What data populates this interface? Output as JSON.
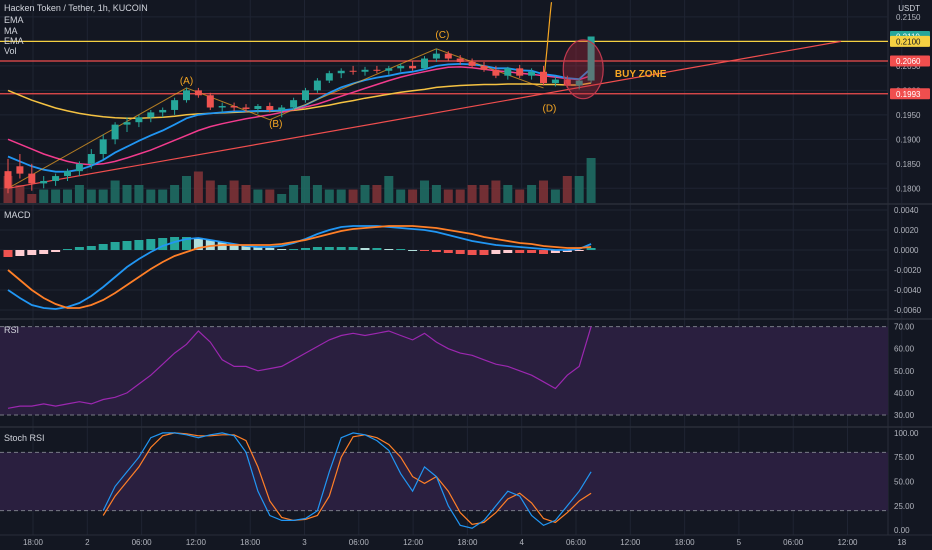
{
  "header": {
    "symbol_title": "Hacken Token / Tether, 1h, KUCOIN",
    "indicators": [
      "EMA",
      "MA",
      "EMA",
      "Vol"
    ],
    "currency": "USDT"
  },
  "panes": {
    "macd_label": "MACD",
    "rsi_label": "RSI",
    "stoch_label": "Stoch RSI"
  },
  "colors": {
    "background": "#131722",
    "grid": "#1f2433",
    "up": "#26a69a",
    "down": "#ef5350",
    "ema_fast": "#2196f3",
    "ma": "#f23b8d",
    "ema_slow": "#f5c242",
    "annotation": "#f5a623",
    "horizontal_red": "#f04e4e",
    "horizontal_yellow": "#f5d042",
    "rsi_line": "#9c27b0",
    "rsi_band": "#2a1f3f",
    "stoch_k": "#2196f3",
    "stoch_d": "#ff7f27"
  },
  "chart_data": [
    {
      "type": "candlestick",
      "title": "Hacken Token / Tether, 1h, KUCOIN",
      "ylim": [
        0.177,
        0.216
      ],
      "y_ticks": [
        0.215,
        0.21,
        0.205,
        0.2,
        0.195,
        0.19,
        0.185,
        0.18
      ],
      "y_tick_labels": [
        "0.2150",
        "0.2100",
        "0.2050",
        "0.2000",
        "0.1950",
        "0.1900",
        "0.1850",
        "0.1800"
      ],
      "x_tick_labels": [
        "18:00",
        "2",
        "06:00",
        "12:00",
        "18:00",
        "3",
        "06:00",
        "12:00",
        "18:00",
        "4",
        "06:00",
        "12:00",
        "18:00",
        "5",
        "06:00",
        "12:00",
        "18"
      ],
      "price_labels": [
        {
          "text": "0.2110",
          "value": 0.211,
          "color": "#26a69a"
        },
        {
          "text": "0.2100",
          "value": 0.21,
          "color": "#f5d042"
        },
        {
          "text": "0.2060",
          "value": 0.206,
          "color": "#f04e4e"
        },
        {
          "text": "0.1993",
          "value": 0.1993,
          "color": "#f04e4e"
        }
      ],
      "horizontal_lines": [
        {
          "value": 0.21,
          "color": "#f5d042"
        },
        {
          "value": 0.206,
          "color": "#f04e4e"
        },
        {
          "value": 0.1993,
          "color": "#f04e4e"
        }
      ],
      "annotations": [
        {
          "text": "(A)",
          "x": 15,
          "y": 0.2013
        },
        {
          "text": "(B)",
          "x": 22.5,
          "y": 0.1925
        },
        {
          "text": "(C)",
          "x": 36.5,
          "y": 0.2107
        },
        {
          "text": "(D)",
          "x": 45.5,
          "y": 0.1957
        },
        {
          "text": "BUY ZONE",
          "x": 51,
          "y": 0.2027
        }
      ],
      "candles": [
        {
          "o": 0.1835,
          "h": 0.186,
          "l": 0.179,
          "c": 0.18
        },
        {
          "o": 0.1845,
          "h": 0.187,
          "l": 0.182,
          "c": 0.183
        },
        {
          "o": 0.183,
          "h": 0.185,
          "l": 0.1795,
          "c": 0.181
        },
        {
          "o": 0.181,
          "h": 0.1825,
          "l": 0.18,
          "c": 0.1815
        },
        {
          "o": 0.1815,
          "h": 0.183,
          "l": 0.1805,
          "c": 0.1825
        },
        {
          "o": 0.1825,
          "h": 0.184,
          "l": 0.1815,
          "c": 0.1835
        },
        {
          "o": 0.1835,
          "h": 0.1855,
          "l": 0.1825,
          "c": 0.185
        },
        {
          "o": 0.185,
          "h": 0.188,
          "l": 0.184,
          "c": 0.187
        },
        {
          "o": 0.187,
          "h": 0.191,
          "l": 0.186,
          "c": 0.19
        },
        {
          "o": 0.19,
          "h": 0.1935,
          "l": 0.189,
          "c": 0.193
        },
        {
          "o": 0.193,
          "h": 0.1945,
          "l": 0.1915,
          "c": 0.1935
        },
        {
          "o": 0.1935,
          "h": 0.195,
          "l": 0.1925,
          "c": 0.1945
        },
        {
          "o": 0.1945,
          "h": 0.196,
          "l": 0.1935,
          "c": 0.1955
        },
        {
          "o": 0.1955,
          "h": 0.1965,
          "l": 0.1945,
          "c": 0.196
        },
        {
          "o": 0.196,
          "h": 0.1985,
          "l": 0.195,
          "c": 0.198
        },
        {
          "o": 0.198,
          "h": 0.2005,
          "l": 0.1975,
          "c": 0.2
        },
        {
          "o": 0.2,
          "h": 0.2005,
          "l": 0.1985,
          "c": 0.199
        },
        {
          "o": 0.199,
          "h": 0.1995,
          "l": 0.196,
          "c": 0.1965
        },
        {
          "o": 0.1965,
          "h": 0.1975,
          "l": 0.1955,
          "c": 0.1968
        },
        {
          "o": 0.1968,
          "h": 0.1975,
          "l": 0.1958,
          "c": 0.1965
        },
        {
          "o": 0.1965,
          "h": 0.1972,
          "l": 0.1955,
          "c": 0.1962
        },
        {
          "o": 0.1962,
          "h": 0.1972,
          "l": 0.1952,
          "c": 0.1968
        },
        {
          "o": 0.1968,
          "h": 0.1975,
          "l": 0.1955,
          "c": 0.196
        },
        {
          "o": 0.196,
          "h": 0.197,
          "l": 0.1945,
          "c": 0.1965
        },
        {
          "o": 0.1965,
          "h": 0.1985,
          "l": 0.196,
          "c": 0.198
        },
        {
          "o": 0.198,
          "h": 0.2005,
          "l": 0.1975,
          "c": 0.2
        },
        {
          "o": 0.2,
          "h": 0.2025,
          "l": 0.1995,
          "c": 0.202
        },
        {
          "o": 0.202,
          "h": 0.204,
          "l": 0.2015,
          "c": 0.2035
        },
        {
          "o": 0.2035,
          "h": 0.2045,
          "l": 0.2025,
          "c": 0.204
        },
        {
          "o": 0.204,
          "h": 0.205,
          "l": 0.2032,
          "c": 0.2038
        },
        {
          "o": 0.2038,
          "h": 0.2048,
          "l": 0.203,
          "c": 0.2042
        },
        {
          "o": 0.2042,
          "h": 0.205,
          "l": 0.2035,
          "c": 0.204
        },
        {
          "o": 0.204,
          "h": 0.205,
          "l": 0.2032,
          "c": 0.2045
        },
        {
          "o": 0.2045,
          "h": 0.2055,
          "l": 0.2038,
          "c": 0.205
        },
        {
          "o": 0.205,
          "h": 0.206,
          "l": 0.204,
          "c": 0.2045
        },
        {
          "o": 0.2045,
          "h": 0.207,
          "l": 0.2042,
          "c": 0.2065
        },
        {
          "o": 0.2065,
          "h": 0.2085,
          "l": 0.2058,
          "c": 0.2075
        },
        {
          "o": 0.2075,
          "h": 0.208,
          "l": 0.206,
          "c": 0.2065
        },
        {
          "o": 0.2065,
          "h": 0.2072,
          "l": 0.2052,
          "c": 0.2058
        },
        {
          "o": 0.2058,
          "h": 0.2065,
          "l": 0.2045,
          "c": 0.205
        },
        {
          "o": 0.205,
          "h": 0.2058,
          "l": 0.2038,
          "c": 0.2042
        },
        {
          "o": 0.2042,
          "h": 0.205,
          "l": 0.2025,
          "c": 0.203
        },
        {
          "o": 0.203,
          "h": 0.2048,
          "l": 0.2022,
          "c": 0.2045
        },
        {
          "o": 0.2045,
          "h": 0.2052,
          "l": 0.2025,
          "c": 0.203
        },
        {
          "o": 0.203,
          "h": 0.2045,
          "l": 0.2022,
          "c": 0.2038
        },
        {
          "o": 0.2038,
          "h": 0.205,
          "l": 0.201,
          "c": 0.2015
        },
        {
          "o": 0.2015,
          "h": 0.2028,
          "l": 0.2008,
          "c": 0.2022
        },
        {
          "o": 0.2022,
          "h": 0.203,
          "l": 0.2005,
          "c": 0.201
        },
        {
          "o": 0.201,
          "h": 0.2025,
          "l": 0.2002,
          "c": 0.202
        },
        {
          "o": 0.202,
          "h": 0.211,
          "l": 0.2015,
          "c": 0.211
        }
      ],
      "volume": [
        6,
        4,
        2,
        3,
        3,
        3,
        4,
        3,
        3,
        5,
        4,
        4,
        3,
        3,
        4,
        6,
        7,
        5,
        4,
        5,
        4,
        3,
        3,
        2,
        4,
        6,
        4,
        3,
        3,
        3,
        4,
        4,
        6,
        3,
        3,
        5,
        4,
        3,
        3,
        4,
        4,
        5,
        4,
        3,
        4,
        5,
        3,
        6,
        6,
        10
      ],
      "ema_fast": [
        0.1865,
        0.1855,
        0.1845,
        0.1838,
        0.1834,
        0.1834,
        0.1838,
        0.1846,
        0.1858,
        0.1873,
        0.1885,
        0.1897,
        0.1908,
        0.1918,
        0.193,
        0.1943,
        0.195,
        0.1953,
        0.1955,
        0.1957,
        0.1957,
        0.1958,
        0.1958,
        0.1959,
        0.1962,
        0.197,
        0.1982,
        0.1995,
        0.2006,
        0.2014,
        0.2021,
        0.2026,
        0.203,
        0.2035,
        0.2038,
        0.2043,
        0.205,
        0.2053,
        0.2054,
        0.2053,
        0.205,
        0.2045,
        0.2045,
        0.2041,
        0.204,
        0.2033,
        0.203,
        0.2025,
        0.2023,
        0.2045
      ],
      "ma": [
        0.19,
        0.189,
        0.188,
        0.187,
        0.1862,
        0.1855,
        0.185,
        0.1848,
        0.185,
        0.1855,
        0.1862,
        0.187,
        0.1878,
        0.1888,
        0.1898,
        0.1908,
        0.1918,
        0.1926,
        0.1932,
        0.1937,
        0.1942,
        0.1946,
        0.195,
        0.1955,
        0.196,
        0.1966,
        0.1972,
        0.198,
        0.1988,
        0.1996,
        0.2004,
        0.2012,
        0.202,
        0.2027,
        0.2033,
        0.2038,
        0.2043,
        0.2047,
        0.2048,
        0.2046,
        0.2043,
        0.204,
        0.2038,
        0.2035,
        0.2033,
        0.203,
        0.2027,
        0.2024,
        0.2022,
        0.203
      ],
      "ema_slow": [
        0.2,
        0.199,
        0.198,
        0.1972,
        0.1964,
        0.1958,
        0.1953,
        0.1949,
        0.1946,
        0.1944,
        0.1943,
        0.1943,
        0.1944,
        0.1945,
        0.1947,
        0.195,
        0.1952,
        0.1953,
        0.1954,
        0.1955,
        0.1956,
        0.1957,
        0.1957,
        0.1958,
        0.1959,
        0.1962,
        0.1966,
        0.197,
        0.1975,
        0.1979,
        0.1984,
        0.1988,
        0.1992,
        0.1996,
        0.1999,
        0.2002,
        0.2006,
        0.2008,
        0.201,
        0.2011,
        0.2012,
        0.2012,
        0.2013,
        0.2013,
        0.2013,
        0.2012,
        0.2012,
        0.2011,
        0.2011,
        0.2015
      ]
    },
    {
      "type": "bar",
      "title": "MACD",
      "ylim": [
        -0.0068,
        0.0045
      ],
      "y_ticks": [
        0.004,
        0.002,
        0.0,
        -0.002,
        -0.004,
        -0.006
      ],
      "y_tick_labels": [
        "0.0040",
        "0.0020",
        "0.0000",
        "-0.0020",
        "-0.0040",
        "-0.0060"
      ],
      "histogram": [
        -0.0007,
        -0.0006,
        -0.0005,
        -0.0004,
        -0.0002,
        0.0001,
        0.0003,
        0.0004,
        0.0006,
        0.0008,
        0.0009,
        0.001,
        0.0011,
        0.0012,
        0.0013,
        0.0013,
        0.0012,
        0.001,
        0.0008,
        0.0006,
        0.0004,
        0.0003,
        0.0002,
        0.0001,
        0.0001,
        0.0002,
        0.0003,
        0.0003,
        0.0003,
        0.0003,
        0.0002,
        0.0002,
        0.0001,
        0.0001,
        0.0,
        -0.0001,
        -0.0002,
        -0.0003,
        -0.0004,
        -0.0005,
        -0.0005,
        -0.0004,
        -0.0003,
        -0.0003,
        -0.0003,
        -0.0004,
        -0.0003,
        -0.0002,
        -0.0001,
        0.0002
      ],
      "macd": [
        -0.004,
        -0.0048,
        -0.0055,
        -0.0058,
        -0.0059,
        -0.0057,
        -0.0053,
        -0.0046,
        -0.0037,
        -0.0027,
        -0.0017,
        -0.0009,
        -0.0002,
        0.0004,
        0.0008,
        0.0011,
        0.0012,
        0.001,
        0.0008,
        0.0006,
        0.0004,
        0.0003,
        0.0003,
        0.0004,
        0.0007,
        0.0011,
        0.0016,
        0.002,
        0.0023,
        0.0024,
        0.0024,
        0.0024,
        0.0023,
        0.0022,
        0.0021,
        0.002,
        0.0018,
        0.0015,
        0.0012,
        0.0009,
        0.0007,
        0.0005,
        0.0004,
        0.0003,
        0.0002,
        0.0001,
        0.0,
        0.0,
        0.0001,
        0.0006
      ],
      "signal": [
        -0.002,
        -0.003,
        -0.004,
        -0.0048,
        -0.0054,
        -0.0058,
        -0.0058,
        -0.0055,
        -0.005,
        -0.0043,
        -0.0035,
        -0.0027,
        -0.0019,
        -0.0012,
        -0.0006,
        -0.0002,
        0.0002,
        0.0004,
        0.0005,
        0.0005,
        0.0005,
        0.0005,
        0.0005,
        0.0006,
        0.0008,
        0.001,
        0.0013,
        0.0016,
        0.0019,
        0.0021,
        0.0022,
        0.0023,
        0.0024,
        0.0024,
        0.0024,
        0.0023,
        0.0022,
        0.002,
        0.0018,
        0.0016,
        0.0013,
        0.0011,
        0.0009,
        0.0007,
        0.0006,
        0.0004,
        0.0003,
        0.0002,
        0.0002,
        0.0003
      ]
    },
    {
      "type": "line",
      "title": "RSI",
      "ylim": [
        25,
        73
      ],
      "y_ticks": [
        70.0,
        60.0,
        50.0,
        40.0,
        30.0
      ],
      "y_tick_labels": [
        "70.00",
        "60.00",
        "50.00",
        "40.00",
        "30.00"
      ],
      "band": [
        30,
        70
      ],
      "values": [
        33,
        34,
        34,
        35,
        34,
        35,
        36,
        35,
        37,
        38,
        40,
        44,
        48,
        53,
        58,
        62,
        68,
        63,
        55,
        52,
        52,
        50,
        51,
        52,
        55,
        58,
        61,
        64,
        66,
        67,
        66,
        67,
        68,
        66,
        64,
        67,
        63,
        60,
        58,
        57,
        55,
        53,
        52,
        50,
        48,
        45,
        42,
        48,
        52,
        70
      ]
    },
    {
      "type": "line",
      "title": "Stoch RSI",
      "ylim": [
        -5,
        105
      ],
      "y_ticks": [
        100.0,
        75.0,
        50.0,
        25.0,
        0.0
      ],
      "y_tick_labels": [
        "100.00",
        "75.00",
        "50.00",
        "25.00",
        "0.00"
      ],
      "band": [
        20,
        80
      ],
      "k": [
        20,
        45,
        60,
        75,
        95,
        100,
        100,
        98,
        95,
        98,
        100,
        97,
        80,
        40,
        15,
        10,
        10,
        12,
        20,
        60,
        95,
        100,
        98,
        92,
        82,
        58,
        40,
        65,
        55,
        25,
        5,
        2,
        10,
        25,
        40,
        35,
        15,
        5,
        10,
        25,
        40,
        60
      ],
      "d": [
        15,
        35,
        50,
        65,
        85,
        97,
        100,
        99,
        97,
        97,
        98,
        98,
        92,
        65,
        30,
        13,
        10,
        11,
        15,
        35,
        75,
        96,
        98,
        95,
        88,
        75,
        55,
        48,
        55,
        40,
        18,
        6,
        8,
        18,
        32,
        38,
        28,
        12,
        8,
        18,
        30,
        38
      ]
    }
  ]
}
